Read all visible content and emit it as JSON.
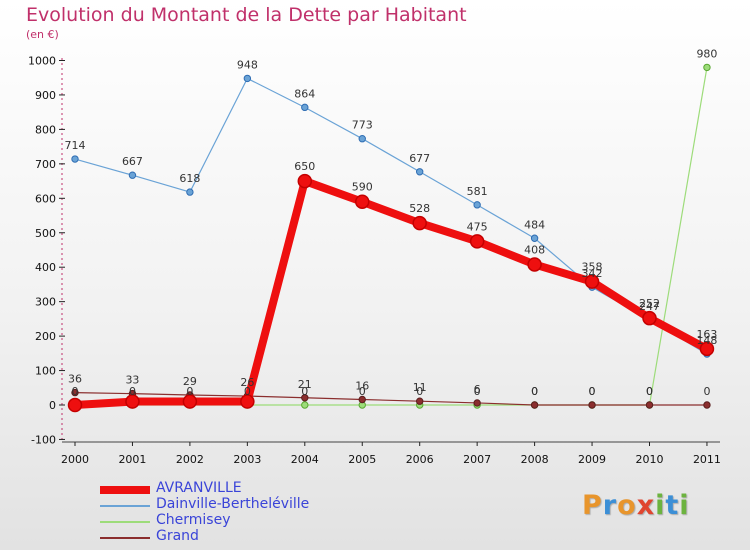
{
  "header": {
    "title": "Evolution du Montant de la Dette par Habitant",
    "subtitle": "(en €)"
  },
  "logo": {
    "text": "Proxiti",
    "colors": [
      "#e8952c",
      "#3c8fd6",
      "#e8952c",
      "#e0452f",
      "#6cb33f",
      "#3c8fd6",
      "#6cb33f"
    ]
  },
  "chart_data": {
    "type": "line",
    "title": "Evolution du Montant de la Dette par Habitant",
    "subtitle": "(en €)",
    "x": [
      "2000",
      "2001",
      "2002",
      "2003",
      "2004",
      "2005",
      "2006",
      "2007",
      "2008",
      "2009",
      "2010",
      "2011"
    ],
    "yticks": [
      "-100",
      "0",
      "100",
      "200",
      "300",
      "400",
      "500",
      "600",
      "700",
      "800",
      "900",
      "1000"
    ],
    "ylim": [
      -100,
      1000
    ],
    "grid": false,
    "legend_position": "bottom-left",
    "series": [
      {
        "name": "AVRANVILLE",
        "color": "#ee0f0f",
        "values": [
          0,
          10,
          10,
          10,
          650,
          590,
          528,
          475,
          408,
          358,
          252,
          163
        ],
        "labels": [
          "",
          "",
          "",
          "",
          "650",
          "590",
          "528",
          "475",
          "408",
          "358",
          "252",
          "163"
        ]
      },
      {
        "name": "Dainville-Bertheléville",
        "color": "#6aa3d6",
        "values": [
          714,
          667,
          618,
          948,
          864,
          773,
          677,
          581,
          484,
          342,
          247,
          148
        ],
        "labels": [
          "714",
          "667",
          "618",
          "948",
          "864",
          "773",
          "677",
          "581",
          "484",
          "342",
          "247",
          "148"
        ]
      },
      {
        "name": "Chermisey",
        "color": "#9ddc7a",
        "values": [
          0,
          0,
          0,
          0,
          0,
          0,
          0,
          0,
          0,
          0,
          0,
          980
        ],
        "labels": [
          "0",
          "0",
          "0",
          "0",
          "0",
          "0",
          "0",
          "0",
          "0",
          "0",
          "0",
          "980"
        ]
      },
      {
        "name": "Grand",
        "color": "#8b2e2e",
        "values": [
          36,
          33,
          29,
          26,
          21,
          16,
          11,
          6,
          0,
          0,
          0,
          0
        ],
        "labels": [
          "36",
          "33",
          "29",
          "26",
          "21",
          "16",
          "11",
          "6",
          "0",
          "0",
          "0",
          "0"
        ]
      }
    ]
  }
}
